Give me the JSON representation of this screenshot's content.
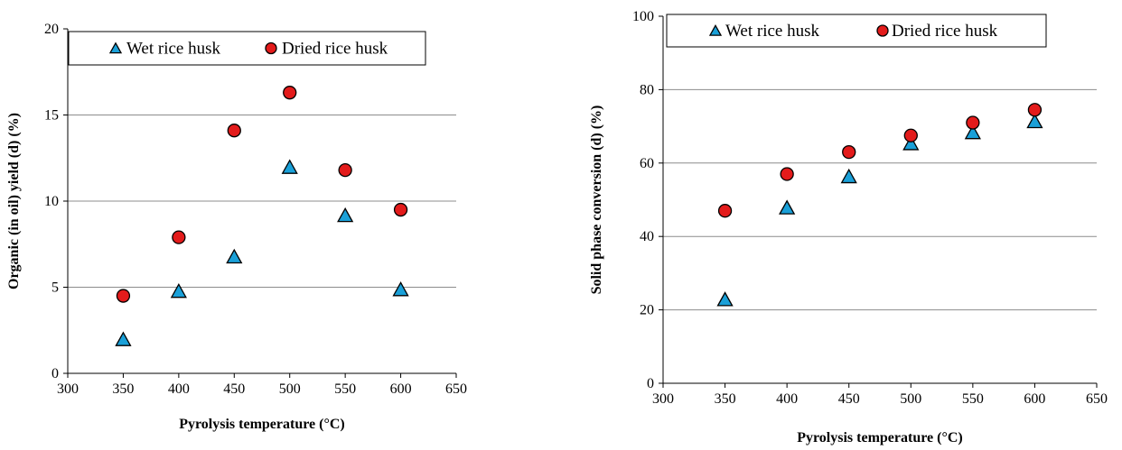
{
  "chart_data": [
    {
      "type": "scatter",
      "title": "",
      "xlabel": "Pyrolysis temperature (°C)",
      "ylabel": "Organic (in oil) yield (d) (%)",
      "xlim": [
        300,
        650
      ],
      "ylim": [
        0,
        20
      ],
      "xticks": [
        "300",
        "350",
        "400",
        "450",
        "500",
        "550",
        "600",
        "650"
      ],
      "yticks": [
        "0",
        "5",
        "10",
        "15",
        "20"
      ],
      "grid": "horizontal",
      "legend_placement": "top",
      "series": [
        {
          "name": "Wet rice husk",
          "marker": "triangle",
          "color": "#1aa0d8",
          "x": [
            350,
            400,
            450,
            500,
            550,
            600
          ],
          "y": [
            1.9,
            4.7,
            6.7,
            11.9,
            9.1,
            4.8
          ]
        },
        {
          "name": "Dried rice husk",
          "marker": "circle",
          "color": "#e31b1b",
          "x": [
            350,
            400,
            450,
            500,
            550,
            600
          ],
          "y": [
            4.5,
            7.9,
            14.1,
            16.3,
            11.8,
            9.5
          ]
        }
      ]
    },
    {
      "type": "scatter",
      "title": "",
      "xlabel": "Pyrolysis temperature (°C)",
      "ylabel": "Solid phase conversion (d) (%)",
      "xlim": [
        300,
        650
      ],
      "ylim": [
        0,
        100
      ],
      "xticks": [
        "300",
        "350",
        "400",
        "450",
        "500",
        "550",
        "600",
        "650"
      ],
      "yticks": [
        "0",
        "20",
        "40",
        "60",
        "80",
        "100"
      ],
      "grid": "horizontal",
      "legend_placement": "top",
      "series": [
        {
          "name": "Wet rice husk",
          "marker": "triangle",
          "color": "#1aa0d8",
          "x": [
            350,
            400,
            450,
            500,
            550,
            600
          ],
          "y": [
            22.5,
            47.5,
            56,
            65,
            68,
            71
          ]
        },
        {
          "name": "Dried rice husk",
          "marker": "circle",
          "color": "#e31b1b",
          "x": [
            350,
            400,
            450,
            500,
            550,
            600
          ],
          "y": [
            47,
            57,
            63,
            67.5,
            71,
            74.5
          ]
        }
      ]
    }
  ]
}
